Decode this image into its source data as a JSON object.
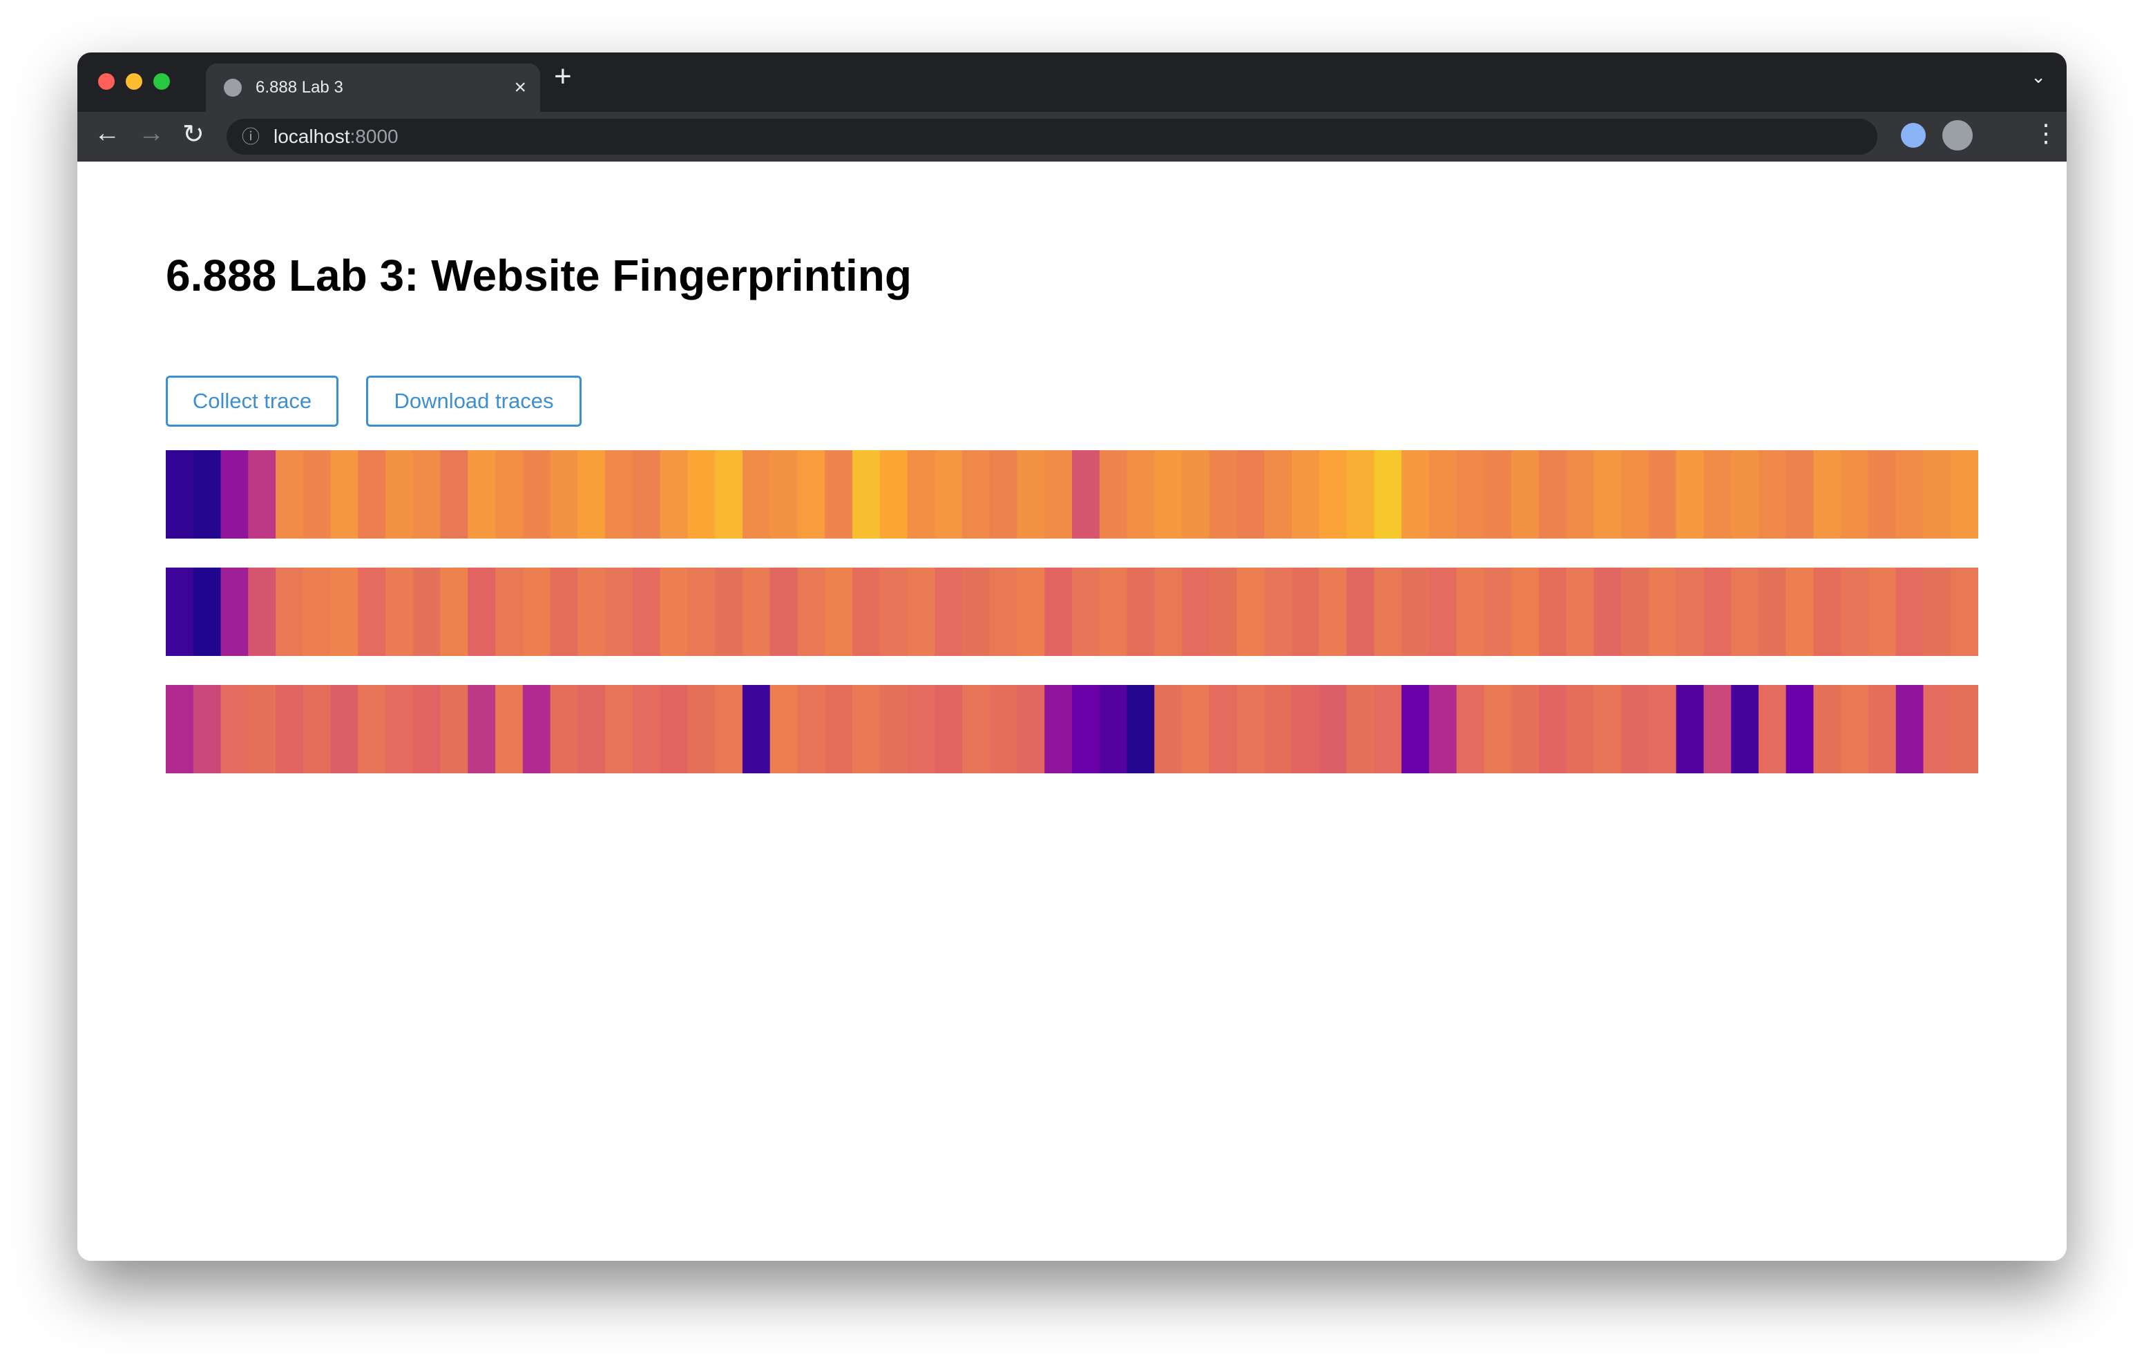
{
  "browser": {
    "tab_title": "6.888 Lab 3",
    "url_host": "localhost",
    "url_port": ":8000"
  },
  "page": {
    "title": "6.888 Lab 3: Website Fingerprinting",
    "buttons": [
      "Collect trace",
      "Download traces"
    ],
    "traces": [
      [
        8,
        5,
        30,
        45,
        72,
        70,
        75,
        68,
        74,
        72,
        66,
        76,
        73,
        70,
        74,
        78,
        71,
        69,
        75,
        80,
        84,
        72,
        74,
        77,
        70,
        86,
        80,
        73,
        75,
        71,
        69,
        74,
        72,
        55,
        70,
        73,
        76,
        74,
        70,
        68,
        72,
        75,
        79,
        82,
        88,
        76,
        73,
        71,
        70,
        74,
        69,
        72,
        75,
        73,
        70,
        76,
        72,
        74,
        71,
        69,
        75,
        73,
        70,
        72,
        74,
        76
      ],
      [
        10,
        4,
        35,
        55,
        66,
        68,
        70,
        62,
        67,
        64,
        69,
        60,
        66,
        68,
        63,
        67,
        65,
        62,
        68,
        66,
        64,
        67,
        61,
        66,
        69,
        63,
        65,
        67,
        62,
        64,
        66,
        68,
        60,
        65,
        67,
        63,
        66,
        62,
        64,
        68,
        65,
        63,
        67,
        61,
        66,
        64,
        62,
        67,
        65,
        68,
        63,
        66,
        61,
        64,
        67,
        65,
        62,
        66,
        64,
        68,
        63,
        65,
        67,
        62,
        64,
        66
      ],
      [
        40,
        50,
        62,
        64,
        60,
        63,
        58,
        65,
        62,
        60,
        64,
        45,
        66,
        40,
        63,
        61,
        65,
        62,
        60,
        64,
        66,
        10,
        68,
        65,
        63,
        66,
        64,
        62,
        60,
        65,
        63,
        61,
        30,
        20,
        15,
        5,
        64,
        66,
        62,
        65,
        63,
        60,
        58,
        64,
        62,
        20,
        40,
        62,
        66,
        64,
        60,
        63,
        65,
        61,
        62,
        15,
        50,
        12,
        62,
        20,
        64,
        66,
        63,
        30,
        62,
        64
      ]
    ]
  }
}
